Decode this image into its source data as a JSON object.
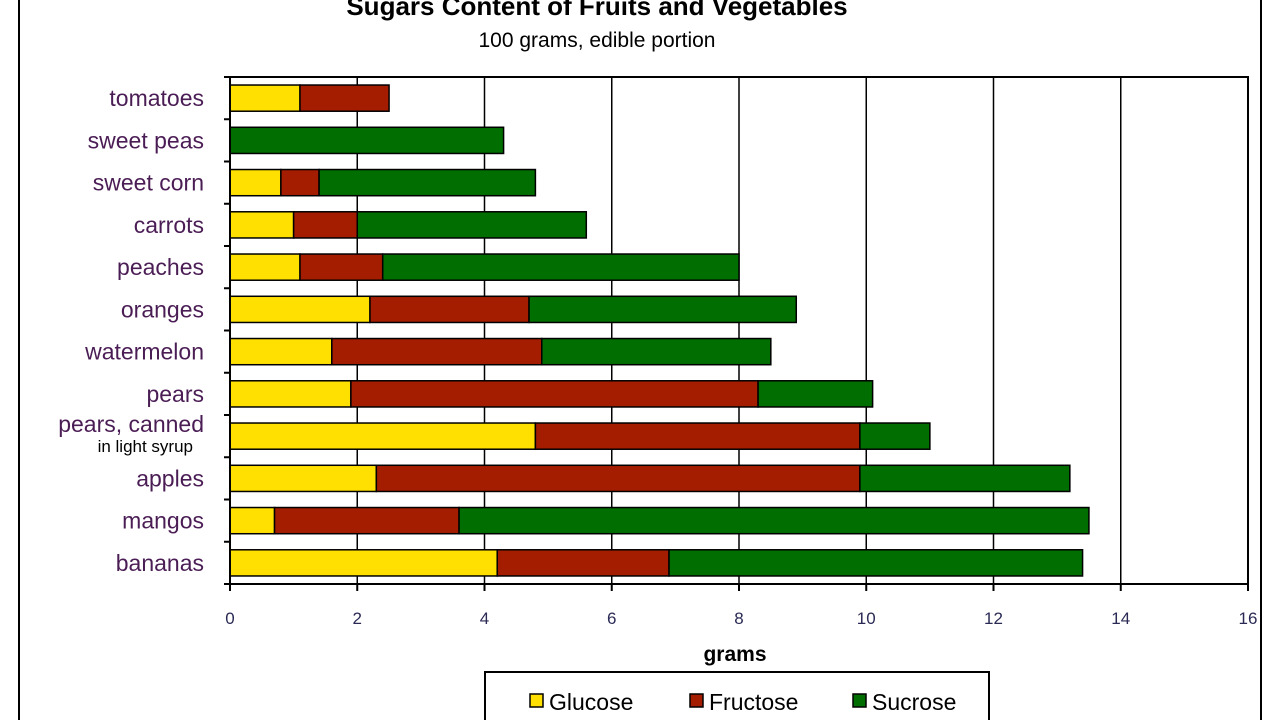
{
  "chart_data": {
    "type": "bar",
    "orientation": "horizontal",
    "stacked": true,
    "title": "Sugars Content of Fruits and Vegetables",
    "subtitle": "100 grams, edible portion",
    "xlabel": "grams",
    "ylabel": "",
    "xlim": [
      0,
      16
    ],
    "xticks": [
      0,
      2,
      4,
      6,
      8,
      10,
      12,
      14,
      16
    ],
    "grid": "vertical",
    "legend_position": "bottom",
    "categories": [
      {
        "label": "tomatoes",
        "sub": ""
      },
      {
        "label": "sweet peas",
        "sub": ""
      },
      {
        "label": "sweet corn",
        "sub": ""
      },
      {
        "label": "carrots",
        "sub": ""
      },
      {
        "label": "peaches",
        "sub": ""
      },
      {
        "label": "oranges",
        "sub": ""
      },
      {
        "label": "watermelon",
        "sub": ""
      },
      {
        "label": "pears",
        "sub": ""
      },
      {
        "label": "pears, canned",
        "sub": "in light syrup"
      },
      {
        "label": "apples",
        "sub": ""
      },
      {
        "label": "mangos",
        "sub": ""
      },
      {
        "label": "bananas",
        "sub": ""
      }
    ],
    "series": [
      {
        "name": "Glucose",
        "color": "#ffe000",
        "values": [
          1.1,
          0.0,
          0.8,
          1.0,
          1.1,
          2.2,
          1.6,
          1.9,
          4.8,
          2.3,
          0.7,
          4.2
        ]
      },
      {
        "name": "Fructose",
        "color": "#a41d00",
        "values": [
          1.4,
          0.0,
          0.6,
          1.0,
          1.3,
          2.5,
          3.3,
          6.4,
          5.1,
          7.6,
          2.9,
          2.7
        ]
      },
      {
        "name": "Sucrose",
        "color": "#006e00",
        "values": [
          0.0,
          4.3,
          3.4,
          3.6,
          5.6,
          4.2,
          3.6,
          1.8,
          1.1,
          3.3,
          9.9,
          6.5
        ]
      }
    ]
  }
}
